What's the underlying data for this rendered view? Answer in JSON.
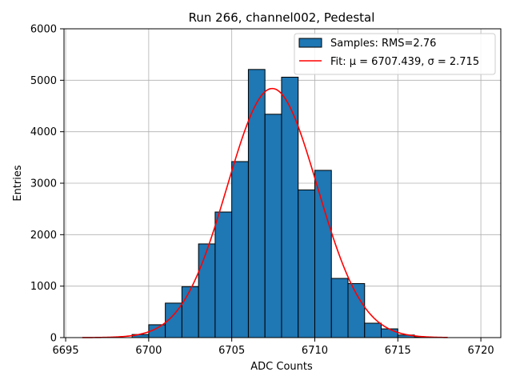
{
  "chart_data": {
    "type": "bar",
    "title": "Run 266, channel002, Pedestal",
    "xlabel": "ADC Counts",
    "ylabel": "Entries",
    "xlim": [
      6694.9,
      6721.2
    ],
    "ylim": [
      0,
      6000
    ],
    "xticks": [
      6695,
      6700,
      6705,
      6710,
      6715,
      6720
    ],
    "yticks": [
      0,
      1000,
      2000,
      3000,
      4000,
      5000,
      6000
    ],
    "grid": true,
    "legend_placement": "top-right",
    "bin_width": 1,
    "bins": {
      "edges_start": [
        6699,
        6700,
        6701,
        6702,
        6703,
        6704,
        6705,
        6706,
        6707,
        6708,
        6709,
        6710,
        6711,
        6712,
        6713,
        6714,
        6715,
        6716
      ],
      "values": [
        60,
        250,
        670,
        990,
        1820,
        2440,
        3420,
        5210,
        4340,
        5060,
        2870,
        3250,
        1150,
        1050,
        280,
        170,
        50,
        15
      ]
    },
    "series": [
      {
        "name": "Samples: RMS=2.76",
        "kind": "histogram",
        "color": "#1f77b4",
        "edgecolor": "#000000"
      },
      {
        "name": "Fit: μ = 6707.439, σ = 2.715",
        "kind": "gaussian-fit",
        "color": "#ff0000",
        "mu": 6707.439,
        "sigma": 2.715,
        "amplitude": 4840,
        "x_range": [
          6696,
          6718
        ]
      }
    ]
  }
}
